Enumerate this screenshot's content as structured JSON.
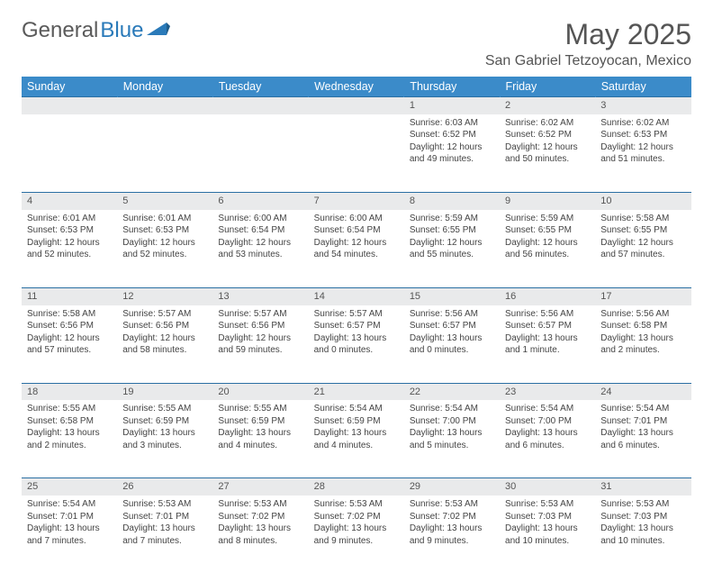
{
  "brand": {
    "part1": "General",
    "part2": "Blue"
  },
  "title": "May 2025",
  "location": "San Gabriel Tetzoyocan, Mexico",
  "colors": {
    "header_bg": "#3b8bc9",
    "header_text": "#ffffff",
    "daynum_bg": "#e9eaeb",
    "border": "#2a6fa3",
    "logo_gray": "#5a5a5a",
    "logo_blue": "#2a7ab9"
  },
  "day_headers": [
    "Sunday",
    "Monday",
    "Tuesday",
    "Wednesday",
    "Thursday",
    "Friday",
    "Saturday"
  ],
  "weeks": [
    {
      "nums": [
        "",
        "",
        "",
        "",
        "1",
        "2",
        "3"
      ],
      "cells": [
        null,
        null,
        null,
        null,
        {
          "sunrise": "6:03 AM",
          "sunset": "6:52 PM",
          "daylight": "12 hours and 49 minutes."
        },
        {
          "sunrise": "6:02 AM",
          "sunset": "6:52 PM",
          "daylight": "12 hours and 50 minutes."
        },
        {
          "sunrise": "6:02 AM",
          "sunset": "6:53 PM",
          "daylight": "12 hours and 51 minutes."
        }
      ]
    },
    {
      "nums": [
        "4",
        "5",
        "6",
        "7",
        "8",
        "9",
        "10"
      ],
      "cells": [
        {
          "sunrise": "6:01 AM",
          "sunset": "6:53 PM",
          "daylight": "12 hours and 52 minutes."
        },
        {
          "sunrise": "6:01 AM",
          "sunset": "6:53 PM",
          "daylight": "12 hours and 52 minutes."
        },
        {
          "sunrise": "6:00 AM",
          "sunset": "6:54 PM",
          "daylight": "12 hours and 53 minutes."
        },
        {
          "sunrise": "6:00 AM",
          "sunset": "6:54 PM",
          "daylight": "12 hours and 54 minutes."
        },
        {
          "sunrise": "5:59 AM",
          "sunset": "6:55 PM",
          "daylight": "12 hours and 55 minutes."
        },
        {
          "sunrise": "5:59 AM",
          "sunset": "6:55 PM",
          "daylight": "12 hours and 56 minutes."
        },
        {
          "sunrise": "5:58 AM",
          "sunset": "6:55 PM",
          "daylight": "12 hours and 57 minutes."
        }
      ]
    },
    {
      "nums": [
        "11",
        "12",
        "13",
        "14",
        "15",
        "16",
        "17"
      ],
      "cells": [
        {
          "sunrise": "5:58 AM",
          "sunset": "6:56 PM",
          "daylight": "12 hours and 57 minutes."
        },
        {
          "sunrise": "5:57 AM",
          "sunset": "6:56 PM",
          "daylight": "12 hours and 58 minutes."
        },
        {
          "sunrise": "5:57 AM",
          "sunset": "6:56 PM",
          "daylight": "12 hours and 59 minutes."
        },
        {
          "sunrise": "5:57 AM",
          "sunset": "6:57 PM",
          "daylight": "13 hours and 0 minutes."
        },
        {
          "sunrise": "5:56 AM",
          "sunset": "6:57 PM",
          "daylight": "13 hours and 0 minutes."
        },
        {
          "sunrise": "5:56 AM",
          "sunset": "6:57 PM",
          "daylight": "13 hours and 1 minute."
        },
        {
          "sunrise": "5:56 AM",
          "sunset": "6:58 PM",
          "daylight": "13 hours and 2 minutes."
        }
      ]
    },
    {
      "nums": [
        "18",
        "19",
        "20",
        "21",
        "22",
        "23",
        "24"
      ],
      "cells": [
        {
          "sunrise": "5:55 AM",
          "sunset": "6:58 PM",
          "daylight": "13 hours and 2 minutes."
        },
        {
          "sunrise": "5:55 AM",
          "sunset": "6:59 PM",
          "daylight": "13 hours and 3 minutes."
        },
        {
          "sunrise": "5:55 AM",
          "sunset": "6:59 PM",
          "daylight": "13 hours and 4 minutes."
        },
        {
          "sunrise": "5:54 AM",
          "sunset": "6:59 PM",
          "daylight": "13 hours and 4 minutes."
        },
        {
          "sunrise": "5:54 AM",
          "sunset": "7:00 PM",
          "daylight": "13 hours and 5 minutes."
        },
        {
          "sunrise": "5:54 AM",
          "sunset": "7:00 PM",
          "daylight": "13 hours and 6 minutes."
        },
        {
          "sunrise": "5:54 AM",
          "sunset": "7:01 PM",
          "daylight": "13 hours and 6 minutes."
        }
      ]
    },
    {
      "nums": [
        "25",
        "26",
        "27",
        "28",
        "29",
        "30",
        "31"
      ],
      "cells": [
        {
          "sunrise": "5:54 AM",
          "sunset": "7:01 PM",
          "daylight": "13 hours and 7 minutes."
        },
        {
          "sunrise": "5:53 AM",
          "sunset": "7:01 PM",
          "daylight": "13 hours and 7 minutes."
        },
        {
          "sunrise": "5:53 AM",
          "sunset": "7:02 PM",
          "daylight": "13 hours and 8 minutes."
        },
        {
          "sunrise": "5:53 AM",
          "sunset": "7:02 PM",
          "daylight": "13 hours and 9 minutes."
        },
        {
          "sunrise": "5:53 AM",
          "sunset": "7:02 PM",
          "daylight": "13 hours and 9 minutes."
        },
        {
          "sunrise": "5:53 AM",
          "sunset": "7:03 PM",
          "daylight": "13 hours and 10 minutes."
        },
        {
          "sunrise": "5:53 AM",
          "sunset": "7:03 PM",
          "daylight": "13 hours and 10 minutes."
        }
      ]
    }
  ],
  "labels": {
    "sunrise": "Sunrise:",
    "sunset": "Sunset:",
    "daylight": "Daylight:"
  }
}
